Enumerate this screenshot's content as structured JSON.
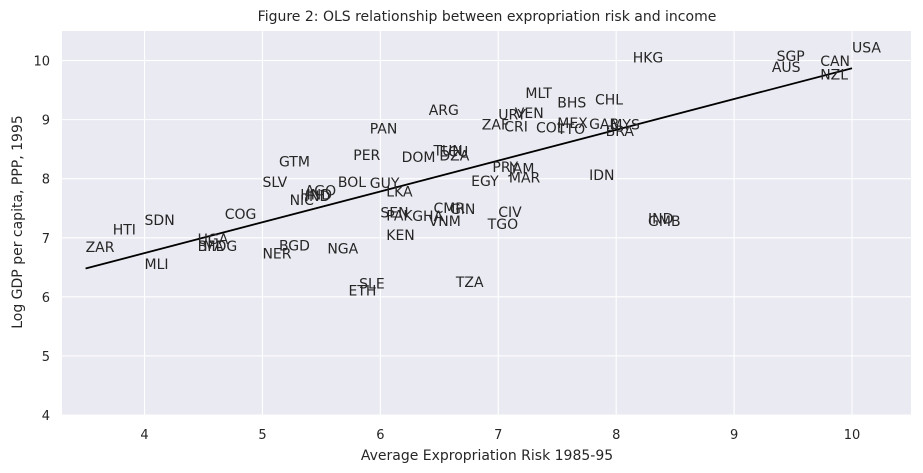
{
  "chart_data": {
    "type": "scatter",
    "title": "Figure 2: OLS relationship between expropriation     risk and income",
    "xlabel": "Average Expropriation Risk 1985-95",
    "ylabel": "Log GDP per capita, PPP, 1995",
    "xlim": [
      3.3,
      10.5
    ],
    "ylim": [
      4,
      10.5
    ],
    "xticks": [
      4,
      5,
      6,
      7,
      8,
      9,
      10
    ],
    "yticks": [
      4,
      5,
      6,
      7,
      8,
      9,
      10
    ],
    "grid": true,
    "background": "#eaeaf2",
    "line_color": "#000000",
    "fit_line": {
      "x": [
        3.5,
        10.0
      ],
      "y": [
        6.48,
        9.87
      ]
    },
    "points": [
      {
        "label": "USA",
        "x": 10.0,
        "y": 10.22
      },
      {
        "label": "CAN",
        "x": 9.73,
        "y": 9.99
      },
      {
        "label": "NZL",
        "x": 9.73,
        "y": 9.76
      },
      {
        "label": "SGP",
        "x": 9.36,
        "y": 10.08
      },
      {
        "label": "AUS",
        "x": 9.32,
        "y": 9.89
      },
      {
        "label": "HKG",
        "x": 8.14,
        "y": 10.05
      },
      {
        "label": "CHL",
        "x": 7.82,
        "y": 9.34
      },
      {
        "label": "BHS",
        "x": 7.5,
        "y": 9.29
      },
      {
        "label": "MLT",
        "x": 7.23,
        "y": 9.45
      },
      {
        "label": "VEN",
        "x": 7.14,
        "y": 9.11
      },
      {
        "label": "URY",
        "x": 7.0,
        "y": 9.09
      },
      {
        "label": "ZAF",
        "x": 6.86,
        "y": 8.92
      },
      {
        "label": "CRI",
        "x": 7.05,
        "y": 8.88
      },
      {
        "label": "COL",
        "x": 7.32,
        "y": 8.87
      },
      {
        "label": "MEX",
        "x": 7.5,
        "y": 8.94
      },
      {
        "label": "TTO",
        "x": 7.5,
        "y": 8.84
      },
      {
        "label": "GAB",
        "x": 7.77,
        "y": 8.93
      },
      {
        "label": "MYS",
        "x": 7.95,
        "y": 8.92
      },
      {
        "label": "BRA",
        "x": 7.91,
        "y": 8.81
      },
      {
        "label": "ARG",
        "x": 6.41,
        "y": 9.16
      },
      {
        "label": "PAN",
        "x": 5.91,
        "y": 8.85
      },
      {
        "label": "PER",
        "x": 5.77,
        "y": 8.4
      },
      {
        "label": "DOM",
        "x": 6.18,
        "y": 8.37
      },
      {
        "label": "TUN",
        "x": 6.45,
        "y": 8.48
      },
      {
        "label": "ECU",
        "x": 6.5,
        "y": 8.46
      },
      {
        "label": "DZA",
        "x": 6.5,
        "y": 8.39
      },
      {
        "label": "PRY",
        "x": 6.95,
        "y": 8.2
      },
      {
        "label": "JAM",
        "x": 7.09,
        "y": 8.17
      },
      {
        "label": "MAR",
        "x": 7.09,
        "y": 8.02
      },
      {
        "label": "EGY",
        "x": 6.77,
        "y": 7.96
      },
      {
        "label": "IDN",
        "x": 7.77,
        "y": 8.06
      },
      {
        "label": "GTM",
        "x": 5.14,
        "y": 8.29
      },
      {
        "label": "SLV",
        "x": 5.0,
        "y": 7.94
      },
      {
        "label": "BOL",
        "x": 5.64,
        "y": 7.94
      },
      {
        "label": "GUY",
        "x": 5.91,
        "y": 7.93
      },
      {
        "label": "AGO",
        "x": 5.36,
        "y": 7.8
      },
      {
        "label": "HND",
        "x": 5.32,
        "y": 7.73
      },
      {
        "label": "IND",
        "x": 5.36,
        "y": 7.71
      },
      {
        "label": "NIC",
        "x": 5.23,
        "y": 7.64
      },
      {
        "label": "LKA",
        "x": 6.05,
        "y": 7.78
      },
      {
        "label": "SEN",
        "x": 6.0,
        "y": 7.43
      },
      {
        "label": "PAK",
        "x": 6.05,
        "y": 7.38
      },
      {
        "label": "GHA",
        "x": 6.27,
        "y": 7.37
      },
      {
        "label": "CMR",
        "x": 6.45,
        "y": 7.5
      },
      {
        "label": "GIN",
        "x": 6.59,
        "y": 7.49
      },
      {
        "label": "VNM",
        "x": 6.41,
        "y": 7.28
      },
      {
        "label": "CIV",
        "x": 7.0,
        "y": 7.44
      },
      {
        "label": "TGO",
        "x": 6.91,
        "y": 7.23
      },
      {
        "label": "KEN",
        "x": 6.05,
        "y": 7.05
      },
      {
        "label": "IND",
        "x": 8.27,
        "y": 7.33
      },
      {
        "label": "GMB",
        "x": 8.27,
        "y": 7.28
      },
      {
        "label": "SDN",
        "x": 4.0,
        "y": 7.3
      },
      {
        "label": "HTI",
        "x": 3.73,
        "y": 7.14
      },
      {
        "label": "ZAR",
        "x": 3.5,
        "y": 6.84
      },
      {
        "label": "COG",
        "x": 4.68,
        "y": 7.4
      },
      {
        "label": "UGA",
        "x": 4.45,
        "y": 6.98
      },
      {
        "label": "BFA",
        "x": 4.45,
        "y": 6.86
      },
      {
        "label": "MDG",
        "x": 4.5,
        "y": 6.86
      },
      {
        "label": "MLI",
        "x": 4.0,
        "y": 6.56
      },
      {
        "label": "BGD",
        "x": 5.14,
        "y": 6.87
      },
      {
        "label": "NER",
        "x": 5.0,
        "y": 6.73
      },
      {
        "label": "NGA",
        "x": 5.55,
        "y": 6.82
      },
      {
        "label": "SLE",
        "x": 5.82,
        "y": 6.23
      },
      {
        "label": "ETH",
        "x": 5.73,
        "y": 6.11
      },
      {
        "label": "TZA",
        "x": 6.64,
        "y": 6.25
      }
    ]
  }
}
